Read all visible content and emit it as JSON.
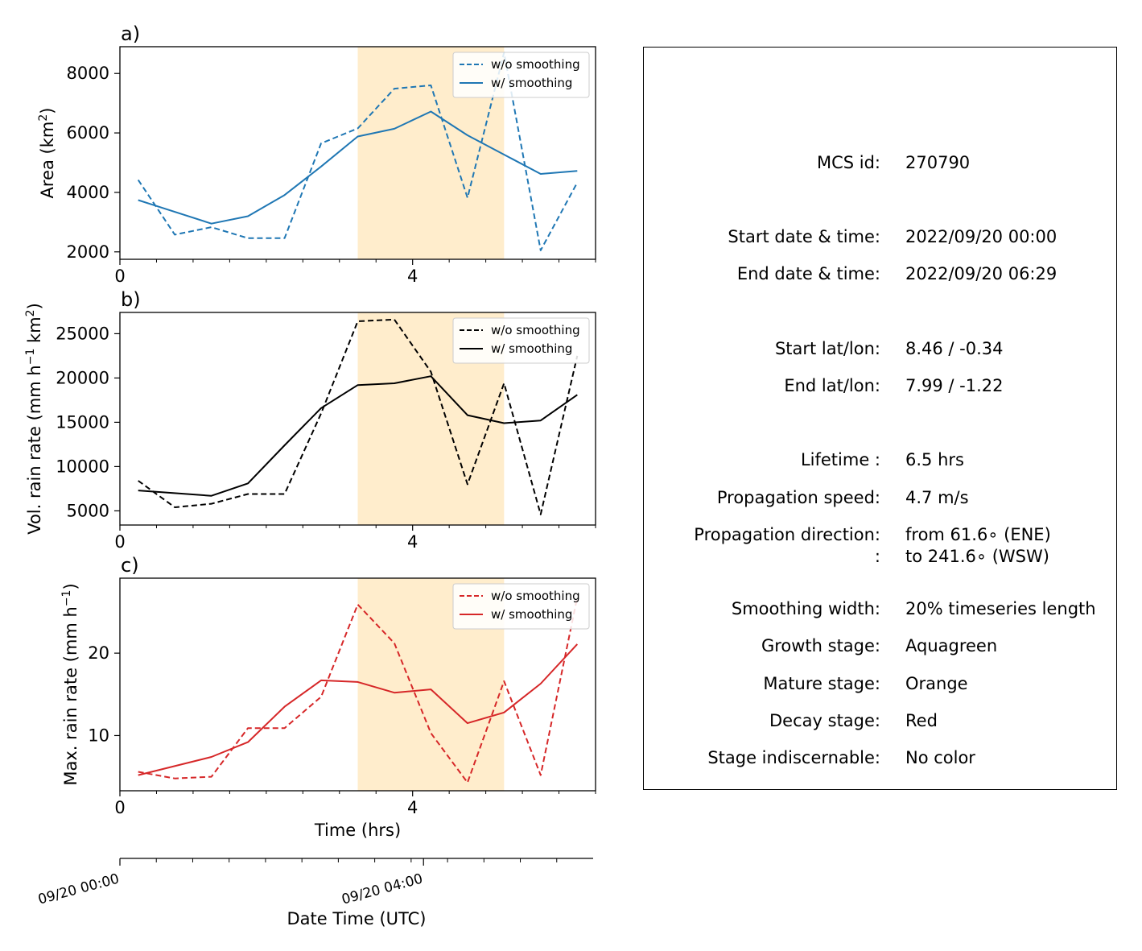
{
  "chart_data": [
    {
      "type": "line",
      "panel_label": "a)",
      "ylabel": "Area  (km$^2$)",
      "ylabel_main": "Area  (km",
      "ylabel_sup": "2",
      "ylabel_tail": ")",
      "xlim": [
        0,
        6.5
      ],
      "ylim": [
        1750,
        8900
      ],
      "x_ticks": [
        0,
        4
      ],
      "x_tick_labels": [
        "0",
        "4"
      ],
      "y_ticks": [
        2000,
        4000,
        6000,
        8000
      ],
      "y_tick_labels": [
        "2000",
        "4000",
        "6000",
        "8000"
      ],
      "mature_span": [
        3.25,
        5.25
      ],
      "legend_position": "top-right",
      "color": "#1f77b4",
      "series": [
        {
          "name": "w/o smoothing",
          "style": "dashed",
          "x": [
            0.25,
            0.75,
            1.25,
            1.75,
            2.25,
            2.75,
            3.25,
            3.75,
            4.25,
            4.75,
            5.25,
            5.75,
            6.25
          ],
          "values": [
            4420,
            2580,
            2830,
            2460,
            2460,
            5650,
            6150,
            7490,
            7600,
            3820,
            8700,
            2050,
            4330
          ]
        },
        {
          "name": "w/ smoothing",
          "style": "solid",
          "x": [
            0.25,
            1.25,
            1.75,
            2.25,
            2.75,
            3.25,
            3.75,
            4.25,
            4.75,
            5.75,
            6.25
          ],
          "values": [
            3740,
            2950,
            3200,
            3910,
            4870,
            5880,
            6140,
            6720,
            5920,
            4620,
            4720
          ]
        }
      ]
    },
    {
      "type": "line",
      "panel_label": "b)",
      "ylabel_main": "Vol. rain rate (mm h",
      "ylabel_sup": "−1",
      "ylabel_mid": " km",
      "ylabel_sup2": "2",
      "ylabel_tail": ")",
      "xlim": [
        0,
        6.5
      ],
      "ylim": [
        3400,
        27400
      ],
      "x_ticks": [
        0,
        4
      ],
      "x_tick_labels": [
        "0",
        "4"
      ],
      "y_ticks": [
        5000,
        10000,
        15000,
        20000,
        25000
      ],
      "y_tick_labels": [
        "5000",
        "10000",
        "15000",
        "20000",
        "25000"
      ],
      "mature_span": [
        3.25,
        5.25
      ],
      "legend_position": "top-right",
      "color": "#000000",
      "series": [
        {
          "name": "w/o smoothing",
          "style": "dashed",
          "x": [
            0.25,
            0.75,
            1.25,
            1.75,
            2.25,
            2.75,
            3.25,
            3.75,
            4.25,
            4.75,
            5.25,
            5.75,
            6.25
          ],
          "values": [
            8400,
            5400,
            5800,
            6900,
            6900,
            16000,
            26400,
            26600,
            20700,
            8000,
            19400,
            4600,
            22500
          ]
        },
        {
          "name": "w/ smoothing",
          "style": "solid",
          "x": [
            0.25,
            1.25,
            1.75,
            2.25,
            2.75,
            3.25,
            3.75,
            4.25,
            4.75,
            5.25,
            5.75,
            6.25
          ],
          "values": [
            7300,
            6700,
            8100,
            12400,
            16600,
            19200,
            19400,
            20200,
            15800,
            14900,
            15200,
            18100
          ]
        }
      ]
    },
    {
      "type": "line",
      "panel_label": "c)",
      "ylabel_main": "Max. rain rate  (mm h",
      "ylabel_sup": "−1",
      "ylabel_tail": ")",
      "xlabel": "Time (hrs)",
      "xlim": [
        0,
        6.5
      ],
      "ylim": [
        3.3,
        29.1
      ],
      "x_ticks": [
        0,
        4
      ],
      "x_tick_labels": [
        "0",
        "4"
      ],
      "y_ticks": [
        10,
        20
      ],
      "y_tick_labels": [
        "10",
        "20"
      ],
      "mature_span": [
        3.25,
        5.25
      ],
      "legend_position": "top-right",
      "color": "#d62728",
      "series": [
        {
          "name": "w/o smoothing",
          "style": "dashed",
          "x": [
            0.25,
            0.75,
            1.25,
            1.75,
            2.25,
            2.75,
            3.25,
            3.75,
            4.25,
            4.75,
            5.25,
            5.75,
            6.25
          ],
          "values": [
            5.6,
            4.8,
            5.0,
            10.9,
            10.9,
            14.7,
            25.9,
            21.2,
            10.3,
            4.3,
            16.6,
            5.2,
            26.8
          ]
        },
        {
          "name": "w/ smoothing",
          "style": "solid",
          "x": [
            0.25,
            1.25,
            1.75,
            2.25,
            2.75,
            3.25,
            3.75,
            4.25,
            4.75,
            5.25,
            5.75,
            6.25
          ],
          "values": [
            5.2,
            7.4,
            9.2,
            13.5,
            16.7,
            16.5,
            15.2,
            15.6,
            11.5,
            12.8,
            16.3,
            21.1
          ]
        }
      ]
    }
  ],
  "datetime_axis": {
    "xlabel": "Date Time (UTC)",
    "xlim": [
      0,
      6.5
    ],
    "major_ticks": [
      0,
      4.17
    ],
    "tick_labels": [
      "09/20 00:00",
      "09/20 04:00"
    ]
  },
  "info": {
    "rows": [
      {
        "label": "MCS id:",
        "value": "270790"
      },
      {
        "label": "Start date & time:",
        "value": "2022/09/20 00:00"
      },
      {
        "label": "End date & time:",
        "value": "2022/09/20 06:29"
      },
      {
        "label": "Start lat/lon:",
        "value": "8.46 / -0.34"
      },
      {
        "label": "End lat/lon:",
        "value": "7.99 / -1.22"
      },
      {
        "label": "Lifetime :",
        "value": "6.5 hrs"
      },
      {
        "label": "Propagation speed:",
        "value": "4.7 m/s"
      },
      {
        "label": "Propagation direction:",
        "value": "from  61.6∘ (ENE)"
      },
      {
        "label": ":",
        "value": "to   241.6∘ (WSW)"
      },
      {
        "label": "Smoothing width:",
        "value": "20% timeseries length"
      },
      {
        "label": "Growth stage:",
        "value": "Aquagreen"
      },
      {
        "label": "Mature stage:",
        "value": "Orange"
      },
      {
        "label": "Decay stage:",
        "value": "Red"
      },
      {
        "label": "Stage indiscernable:",
        "value": "No color"
      }
    ]
  },
  "colors": {
    "mature_shade": "#ffedcc",
    "area": "#1f77b4",
    "volume": "#000000",
    "max": "#d62728"
  }
}
